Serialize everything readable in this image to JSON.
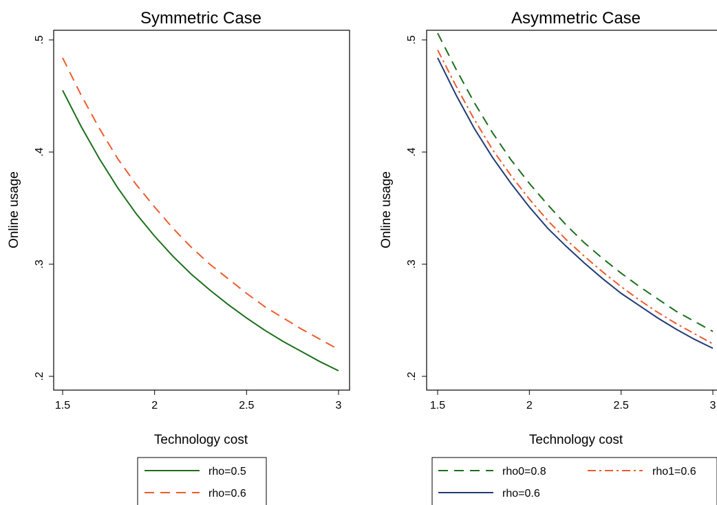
{
  "chart_data": [
    {
      "type": "line",
      "title": "Symmetric Case",
      "xlabel": "Technology cost",
      "ylabel": "Online usage",
      "xlim": [
        1.5,
        3
      ],
      "ylim": [
        0.2,
        0.5
      ],
      "x_ticks": [
        "1.5",
        "2",
        "2.5",
        "3"
      ],
      "y_ticks": [
        ".2",
        ".3",
        ".4",
        ".5"
      ],
      "grid": false,
      "legend_position": "bottom",
      "series": [
        {
          "name": "rho=0.5",
          "color": "#1a6e1a",
          "dash": "solid",
          "x": [
            1.5,
            1.6,
            1.7,
            1.8,
            1.9,
            2.0,
            2.1,
            2.2,
            2.3,
            2.4,
            2.5,
            2.6,
            2.7,
            2.8,
            2.9,
            3.0
          ],
          "y": [
            0.455,
            0.423,
            0.394,
            0.368,
            0.345,
            0.325,
            0.307,
            0.291,
            0.277,
            0.264,
            0.252,
            0.241,
            0.231,
            0.222,
            0.213,
            0.205
          ]
        },
        {
          "name": "rho=0.6",
          "color": "#f0592a",
          "dash": "dashed",
          "x": [
            1.5,
            1.6,
            1.7,
            1.8,
            1.9,
            2.0,
            2.1,
            2.2,
            2.3,
            2.4,
            2.5,
            2.6,
            2.7,
            2.8,
            2.9,
            3.0
          ],
          "y": [
            0.484,
            0.451,
            0.421,
            0.394,
            0.371,
            0.351,
            0.332,
            0.315,
            0.3,
            0.287,
            0.274,
            0.262,
            0.252,
            0.242,
            0.233,
            0.224
          ]
        }
      ]
    },
    {
      "type": "line",
      "title": "Asymmetric Case",
      "xlabel": "Technology cost",
      "ylabel": "Online usage",
      "xlim": [
        1.5,
        3
      ],
      "ylim": [
        0.2,
        0.5
      ],
      "x_ticks": [
        "1.5",
        "2",
        "2.5",
        "3"
      ],
      "y_ticks": [
        ".2",
        ".3",
        ".4",
        ".5"
      ],
      "grid": false,
      "legend_position": "bottom",
      "series": [
        {
          "name": "rho0=0.8",
          "color": "#1a6e1a",
          "dash": "dashed",
          "x": [
            1.5,
            1.6,
            1.7,
            1.8,
            1.9,
            2.0,
            2.1,
            2.2,
            2.3,
            2.4,
            2.5,
            2.6,
            2.7,
            2.8,
            2.9,
            3.0
          ],
          "y": [
            0.506,
            0.474,
            0.444,
            0.417,
            0.393,
            0.372,
            0.353,
            0.335,
            0.319,
            0.305,
            0.292,
            0.28,
            0.269,
            0.258,
            0.249,
            0.24
          ]
        },
        {
          "name": "rho1=0.6",
          "color": "#f0592a",
          "dash": "dashdot",
          "x": [
            1.5,
            1.6,
            1.7,
            1.8,
            1.9,
            2.0,
            2.1,
            2.2,
            2.3,
            2.4,
            2.5,
            2.6,
            2.7,
            2.8,
            2.9,
            3.0
          ],
          "y": [
            0.491,
            0.459,
            0.429,
            0.402,
            0.379,
            0.358,
            0.339,
            0.322,
            0.307,
            0.293,
            0.28,
            0.268,
            0.257,
            0.247,
            0.238,
            0.229
          ]
        },
        {
          "name": "rho=0.6",
          "color": "#1f3b73",
          "dash": "solid",
          "x": [
            1.5,
            1.6,
            1.7,
            1.8,
            1.9,
            2.0,
            2.1,
            2.2,
            2.3,
            2.4,
            2.5,
            2.6,
            2.7,
            2.8,
            2.9,
            3.0
          ],
          "y": [
            0.484,
            0.451,
            0.421,
            0.395,
            0.372,
            0.351,
            0.332,
            0.316,
            0.301,
            0.287,
            0.274,
            0.263,
            0.252,
            0.242,
            0.233,
            0.225
          ]
        }
      ]
    }
  ]
}
